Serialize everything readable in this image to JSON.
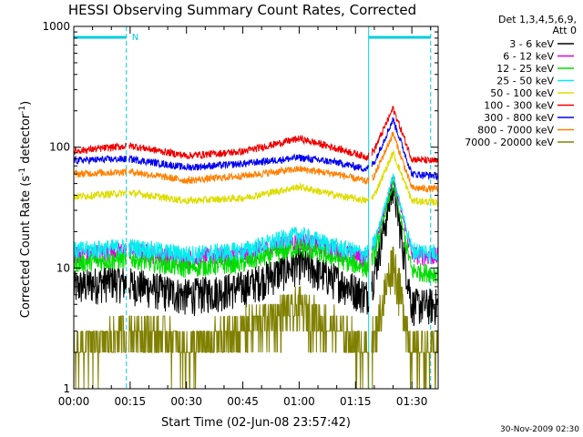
{
  "chart_data": {
    "type": "line",
    "title": "HESSI Observing Summary Count Rates, Corrected",
    "xlabel": "Start Time (02-Jun-08 23:57:42)",
    "ylabel_main": "Corrected Count Rate (s",
    "ylabel_sup1": "-1",
    "ylabel_mid": " detector",
    "ylabel_sup2": "-1",
    "ylabel_end": ")",
    "xlim": [
      0,
      97
    ],
    "ylim": [
      1,
      1000
    ],
    "yscale": "log",
    "x_ticks": [
      0,
      15,
      30,
      45,
      60,
      75,
      90
    ],
    "x_tick_labels": [
      "00:00",
      "00:15",
      "00:30",
      "00:45",
      "01:00",
      "01:15",
      "01:30"
    ],
    "y_ticks": [
      1,
      10,
      100,
      1000
    ],
    "y_tick_labels": [
      "1",
      "10",
      "100",
      "1000"
    ],
    "legend_header": [
      "Det 1,3,4,5,6,9,",
      "Att 0"
    ],
    "legend_position": "right",
    "series": [
      {
        "name": "3 - 6 keV",
        "color": "#000000",
        "base": [
          [
            0,
            7
          ],
          [
            10,
            8
          ],
          [
            15,
            7.5
          ],
          [
            30,
            6
          ],
          [
            45,
            7
          ],
          [
            60,
            11
          ],
          [
            70,
            8
          ],
          [
            78,
            6
          ],
          [
            80,
            9
          ],
          [
            85,
            50
          ],
          [
            90,
            5
          ],
          [
            97,
            5
          ]
        ]
      },
      {
        "name": "6 - 12 keV",
        "color": "#e000e0",
        "base": [
          [
            0,
            13
          ],
          [
            15,
            14
          ],
          [
            30,
            12
          ],
          [
            45,
            13
          ],
          [
            60,
            17
          ],
          [
            70,
            14
          ],
          [
            78,
            12
          ],
          [
            80,
            15
          ],
          [
            85,
            55
          ],
          [
            90,
            13
          ],
          [
            97,
            12.5
          ]
        ]
      },
      {
        "name": "12 - 25 keV",
        "color": "#00dd00",
        "base": [
          [
            0,
            11
          ],
          [
            15,
            12
          ],
          [
            30,
            10
          ],
          [
            45,
            11
          ],
          [
            60,
            15
          ],
          [
            70,
            12
          ],
          [
            78,
            10
          ],
          [
            80,
            13
          ],
          [
            85,
            50
          ],
          [
            90,
            9.5
          ],
          [
            97,
            9
          ]
        ]
      },
      {
        "name": "25 - 50 keV",
        "color": "#00eeee",
        "base": [
          [
            0,
            14
          ],
          [
            15,
            15
          ],
          [
            30,
            13
          ],
          [
            45,
            14
          ],
          [
            60,
            19
          ],
          [
            70,
            15
          ],
          [
            78,
            13
          ],
          [
            80,
            16
          ],
          [
            85,
            58
          ],
          [
            90,
            14
          ],
          [
            97,
            13.5
          ]
        ]
      },
      {
        "name": "50 - 100 keV",
        "color": "#dddd00",
        "base": [
          [
            0,
            39
          ],
          [
            15,
            42
          ],
          [
            30,
            36
          ],
          [
            45,
            38
          ],
          [
            60,
            47
          ],
          [
            70,
            40
          ],
          [
            78,
            36
          ],
          [
            80,
            40
          ],
          [
            85,
            90
          ],
          [
            90,
            36
          ],
          [
            97,
            35
          ]
        ]
      },
      {
        "name": "100 - 300 keV",
        "color": "#ee0000",
        "base": [
          [
            0,
            93
          ],
          [
            15,
            103
          ],
          [
            30,
            85
          ],
          [
            45,
            92
          ],
          [
            60,
            118
          ],
          [
            70,
            98
          ],
          [
            78,
            83
          ],
          [
            80,
            95
          ],
          [
            85,
            210
          ],
          [
            90,
            80
          ],
          [
            97,
            76
          ]
        ]
      },
      {
        "name": "300 - 800 keV",
        "color": "#0000ee",
        "base": [
          [
            0,
            78
          ],
          [
            15,
            80
          ],
          [
            30,
            68
          ],
          [
            45,
            73
          ],
          [
            60,
            82
          ],
          [
            70,
            75
          ],
          [
            78,
            66
          ],
          [
            80,
            75
          ],
          [
            85,
            170
          ],
          [
            90,
            60
          ],
          [
            97,
            58
          ]
        ]
      },
      {
        "name": "800 - 7000 keV",
        "color": "#ff8000",
        "base": [
          [
            0,
            60
          ],
          [
            15,
            63
          ],
          [
            30,
            53
          ],
          [
            45,
            58
          ],
          [
            60,
            66
          ],
          [
            70,
            60
          ],
          [
            78,
            52
          ],
          [
            80,
            58
          ],
          [
            85,
            130
          ],
          [
            90,
            46
          ],
          [
            97,
            45
          ]
        ]
      },
      {
        "name": "7000 - 20000 keV",
        "color": "#808000",
        "base": [
          [
            0,
            2
          ],
          [
            10,
            2.5
          ],
          [
            15,
            3
          ],
          [
            25,
            2.5
          ],
          [
            30,
            2
          ],
          [
            40,
            2.5
          ],
          [
            50,
            3.5
          ],
          [
            60,
            4.5
          ],
          [
            70,
            3
          ],
          [
            78,
            2
          ],
          [
            80,
            2.5
          ],
          [
            85,
            12
          ],
          [
            90,
            2
          ],
          [
            97,
            2
          ]
        ]
      }
    ],
    "flag_label": "N",
    "flag_color": "#00ccdd",
    "segment_boundaries": [
      0,
      14,
      78.5,
      95
    ],
    "flag_bars": [
      [
        0,
        14
      ],
      [
        78.5,
        95
      ]
    ]
  },
  "footer": {
    "timestamp": "30-Nov-2009 02:30"
  }
}
